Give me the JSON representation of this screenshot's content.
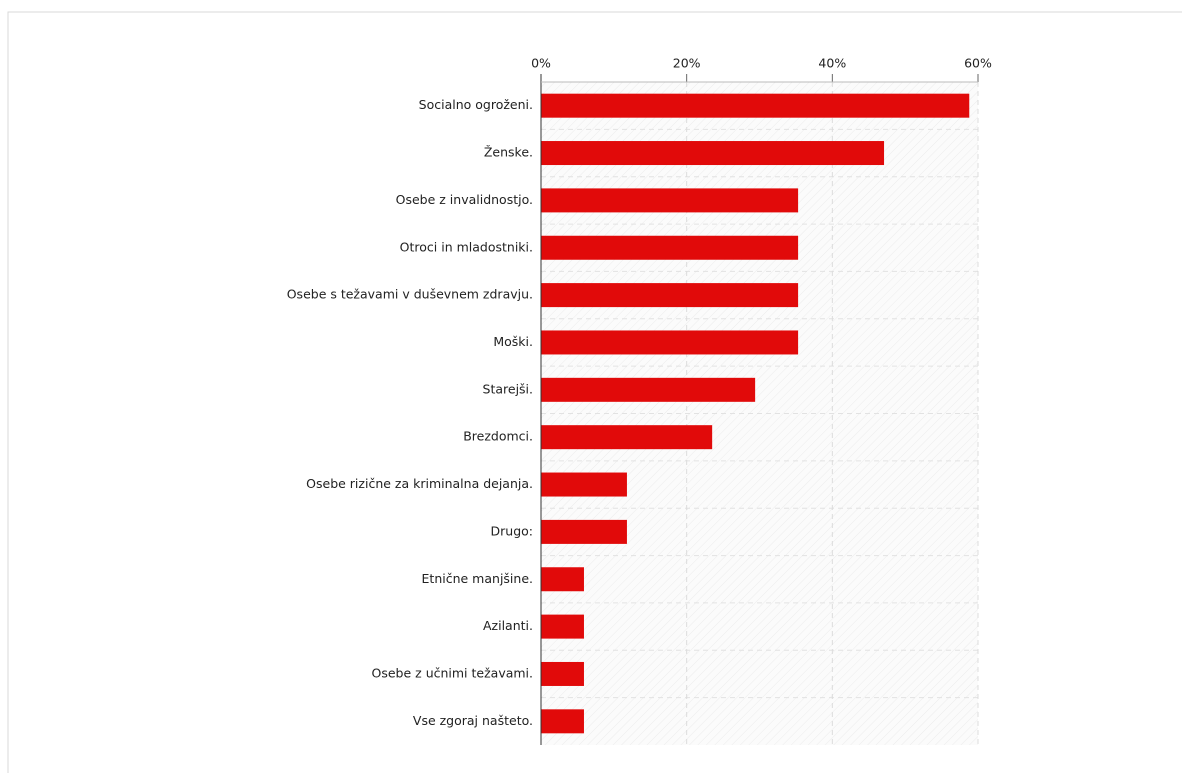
{
  "chart_data": {
    "type": "bar",
    "orientation": "horizontal",
    "categories": [
      "Socialno ogroženi.",
      "Ženske.",
      "Osebe z invalidnostjo.",
      "Otroci in mladostniki.",
      "Osebe s težavami v duševnem zdravju.",
      "Moški.",
      "Starejši.",
      "Brezdomci.",
      "Osebe rizične za kriminalna dejanja.",
      "Drugo:",
      "Etnične manjšine.",
      "Azilanti.",
      "Osebe z učnimi težavami.",
      "Vse zgoraj našteto."
    ],
    "values": [
      58.8,
      47.1,
      35.3,
      35.3,
      35.3,
      35.3,
      29.4,
      23.5,
      11.8,
      11.8,
      5.9,
      5.9,
      5.9,
      5.9
    ],
    "color": "#e10a0a",
    "xlim": [
      0,
      60
    ],
    "xticks": [
      {
        "value": 0,
        "label": "0%"
      },
      {
        "value": 20,
        "label": "20%"
      },
      {
        "value": 40,
        "label": "40%"
      },
      {
        "value": 60,
        "label": "60%"
      }
    ],
    "grid": true
  }
}
